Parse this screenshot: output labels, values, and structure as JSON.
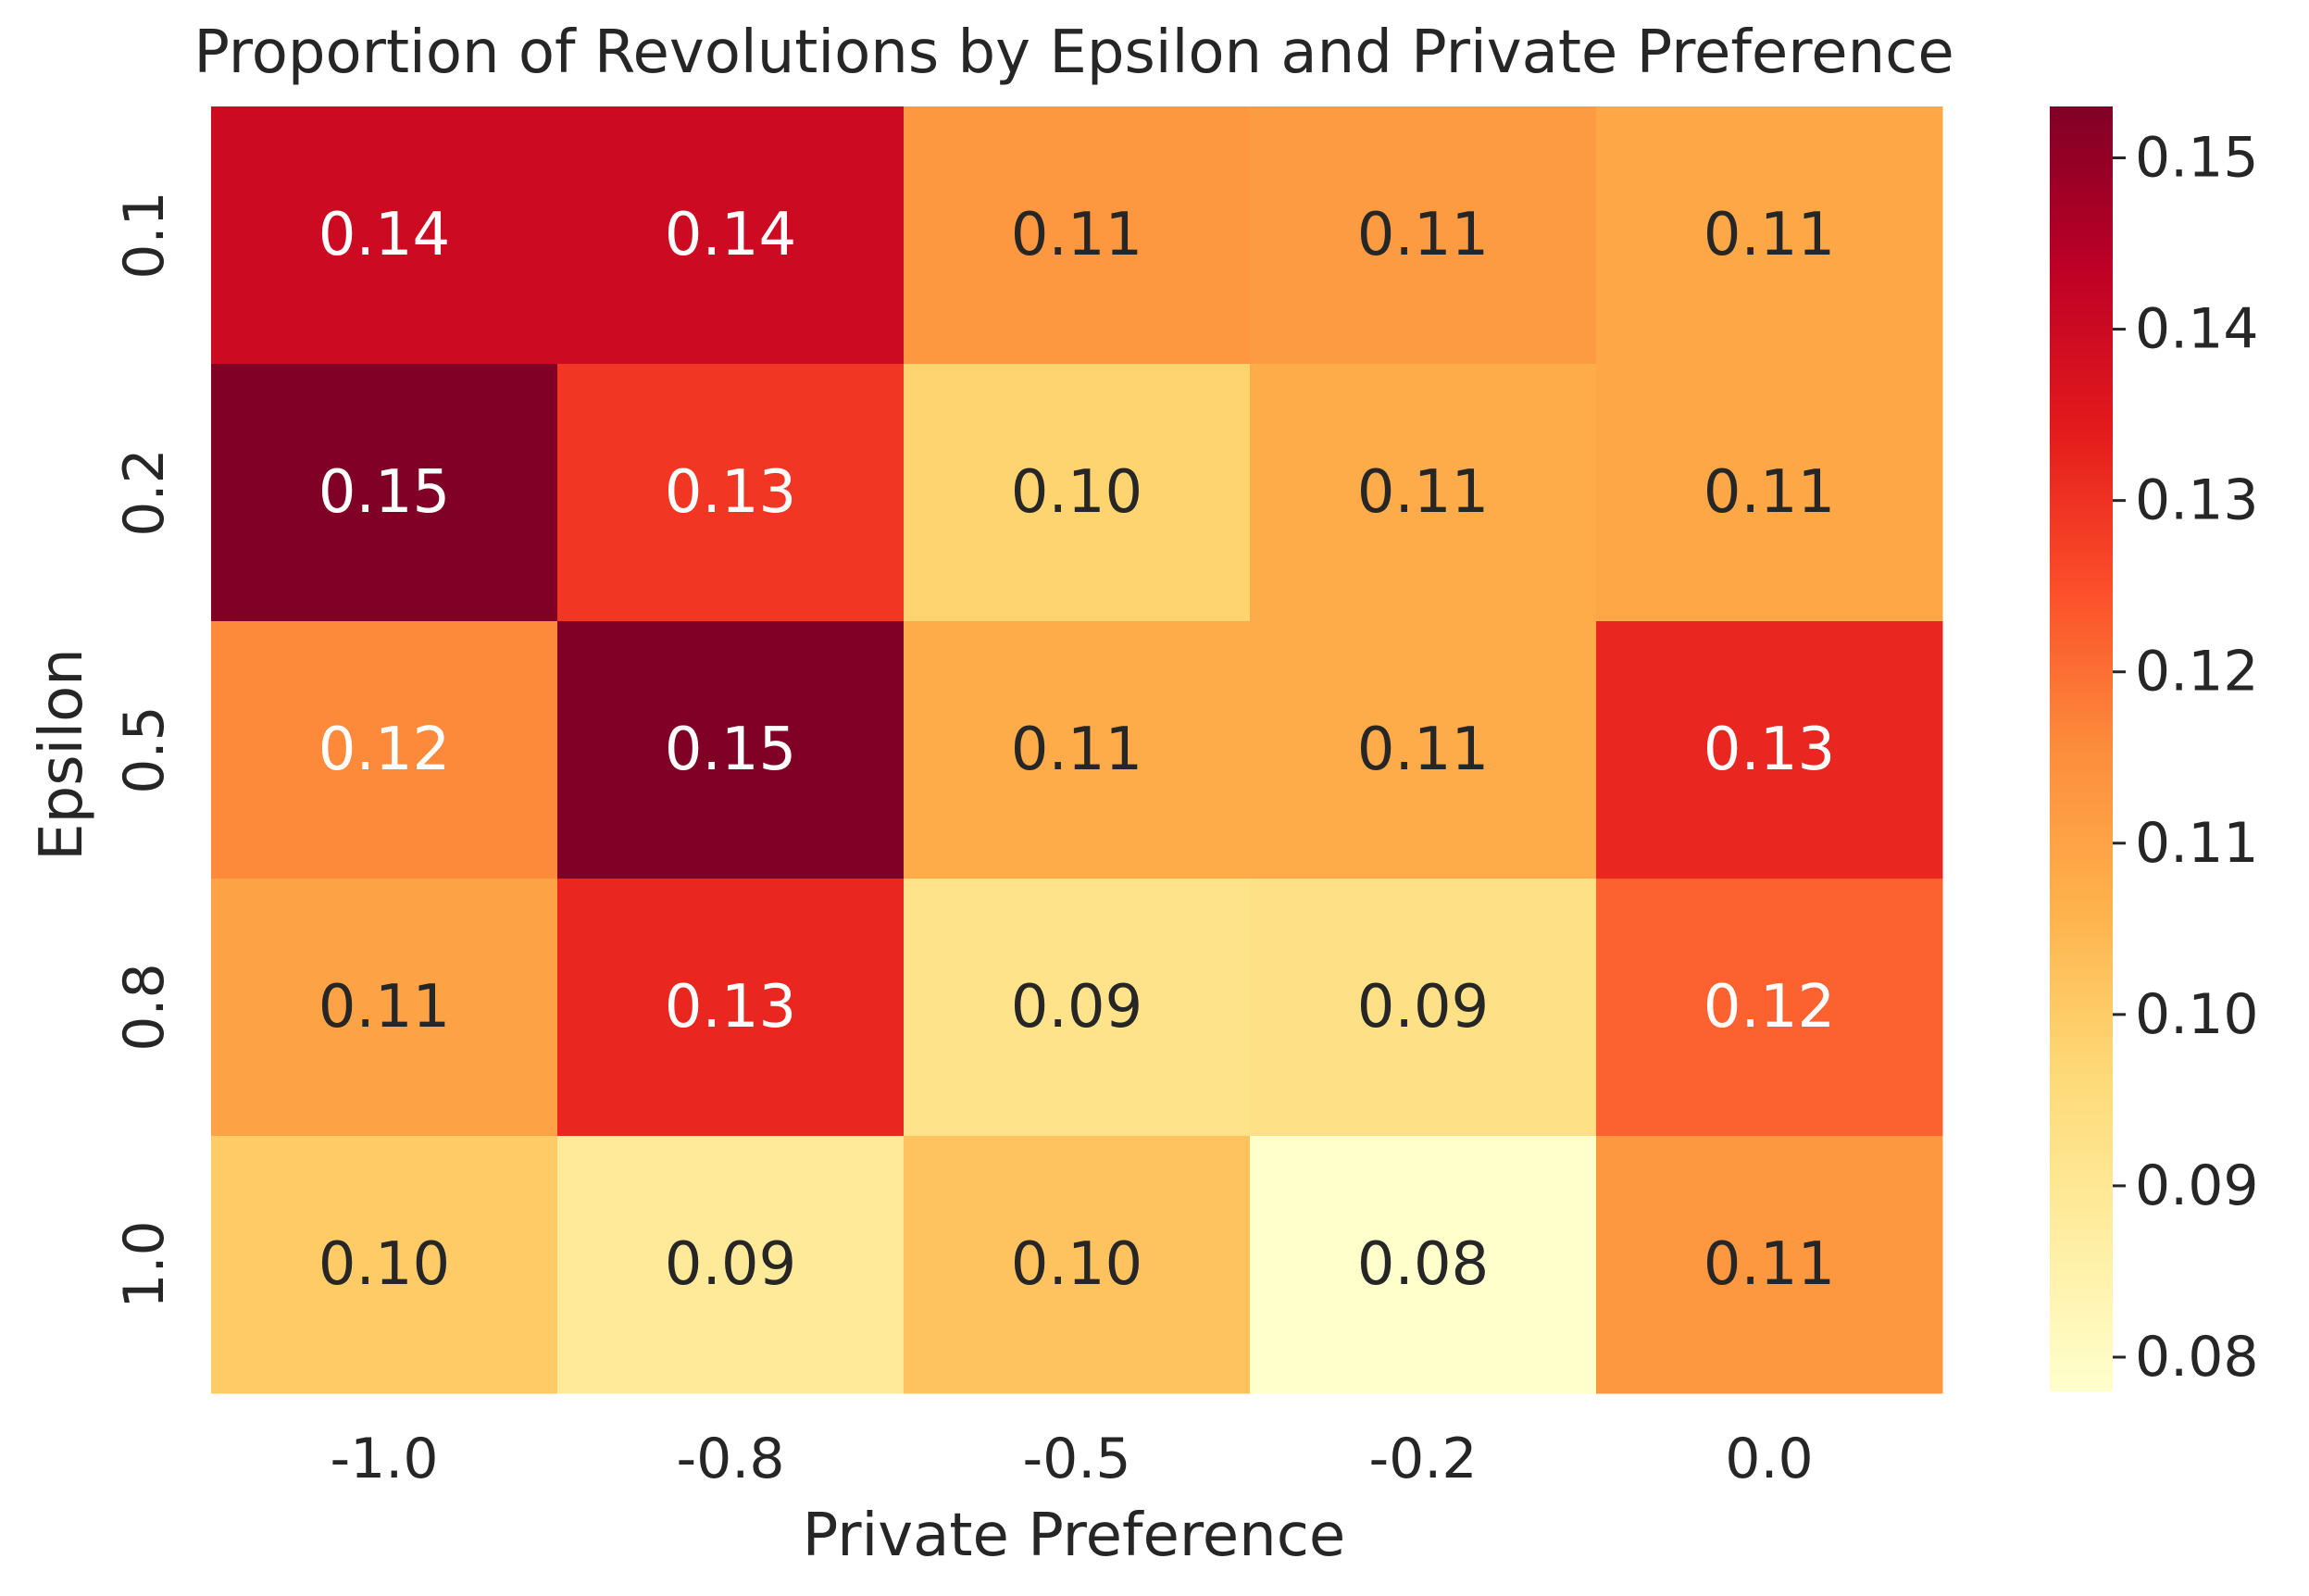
{
  "chart_data": {
    "type": "heatmap",
    "title": "Proportion of Revolutions by Epsilon and Private Preference",
    "xlabel": "Private Preference",
    "ylabel": "Epsilon",
    "x_categories": [
      "-1.0",
      "-0.8",
      "-0.5",
      "-0.2",
      "0.0"
    ],
    "y_categories": [
      "0.1",
      "0.2",
      "0.5",
      "0.8",
      "1.0"
    ],
    "values": [
      [
        0.14,
        0.14,
        0.113,
        0.112,
        0.109
      ],
      [
        0.153,
        0.129,
        0.098,
        0.108,
        0.109
      ],
      [
        0.116,
        0.153,
        0.108,
        0.108,
        0.132
      ],
      [
        0.11,
        0.132,
        0.092,
        0.093,
        0.122
      ],
      [
        0.1,
        0.089,
        0.102,
        0.078,
        0.113
      ]
    ],
    "value_labels": [
      [
        "0.14",
        "0.14",
        "0.11",
        "0.11",
        "0.11"
      ],
      [
        "0.15",
        "0.13",
        "0.10",
        "0.11",
        "0.11"
      ],
      [
        "0.12",
        "0.15",
        "0.11",
        "0.11",
        "0.13"
      ],
      [
        "0.11",
        "0.13",
        "0.09",
        "0.09",
        "0.12"
      ],
      [
        "0.10",
        "0.09",
        "0.10",
        "0.08",
        "0.11"
      ]
    ],
    "colorbar": {
      "colormap": "YlOrRd",
      "range": [
        0.078,
        0.153
      ],
      "ticks": [
        "0.08",
        "0.09",
        "0.10",
        "0.11",
        "0.12",
        "0.13",
        "0.14",
        "0.15"
      ],
      "tick_values": [
        0.08,
        0.09,
        0.1,
        0.11,
        0.12,
        0.13,
        0.14,
        0.15
      ]
    },
    "grid": false,
    "legend": "colorbar-right"
  }
}
